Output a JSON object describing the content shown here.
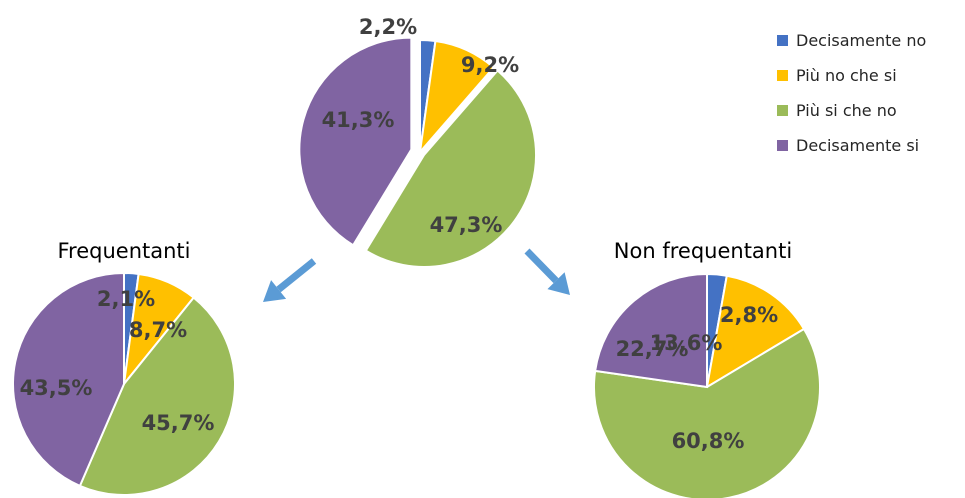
{
  "colors": {
    "decisamente_no": "#4472C4",
    "piu_no_che_si": "#FFC000",
    "piu_si_che_no": "#9BBB59",
    "decisamente_si": "#8064A2",
    "arrow": "#5B9BD5"
  },
  "legend": {
    "items": [
      {
        "label": "Decisamente no",
        "color": "#4472C4"
      },
      {
        "label": "Più no che si",
        "color": "#FFC000"
      },
      {
        "label": "Più si che no",
        "color": "#9BBB59"
      },
      {
        "label": "Decisamente si",
        "color": "#8064A2"
      }
    ]
  },
  "chart_data": [
    {
      "type": "pie",
      "title": "",
      "categories": [
        "Decisamente no",
        "Più no che si",
        "Più si che no",
        "Decisamente si"
      ],
      "values": [
        2.2,
        9.2,
        47.3,
        41.3
      ],
      "labels": [
        "2,2%",
        "9,2%",
        "47,3%",
        "41,3%"
      ],
      "legend": "right"
    },
    {
      "type": "pie",
      "title": "Frequentanti",
      "categories": [
        "Decisamente no",
        "Più no che si",
        "Più si che no",
        "Decisamente si"
      ],
      "values": [
        2.1,
        8.7,
        45.7,
        43.5
      ],
      "labels": [
        "2,1%",
        "8,7%",
        "45,7%",
        "43,5%"
      ]
    },
    {
      "type": "pie",
      "title": "Non frequentanti",
      "categories": [
        "Decisamente no",
        "Più no che si",
        "Più si che no",
        "Decisamente si"
      ],
      "values": [
        2.8,
        13.6,
        60.8,
        22.7
      ],
      "labels": [
        "2,8%",
        "13,6%",
        "60,8%",
        "22,7%"
      ]
    }
  ]
}
